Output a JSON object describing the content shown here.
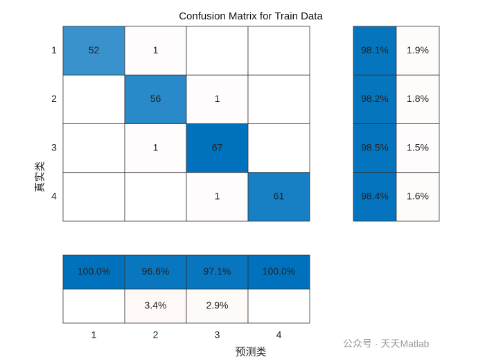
{
  "chart_data": {
    "type": "confusion",
    "title": "Confusion Matrix for Train Data",
    "xlabel": "预测类",
    "ylabel": "真实类",
    "classes": [
      "1",
      "2",
      "3",
      "4"
    ],
    "matrix": [
      [
        52,
        1,
        null,
        null
      ],
      [
        null,
        56,
        1,
        null
      ],
      [
        null,
        1,
        67,
        null
      ],
      [
        null,
        null,
        1,
        61
      ]
    ],
    "row_summary": {
      "correct": [
        98.1,
        98.2,
        98.5,
        98.4
      ],
      "correct_labels": [
        "98.1%",
        "98.2%",
        "98.5%",
        "98.4%"
      ],
      "incorrect": [
        1.9,
        1.8,
        1.5,
        1.6
      ],
      "incorrect_labels": [
        "1.9%",
        "1.8%",
        "1.5%",
        "1.6%"
      ]
    },
    "column_summary": {
      "correct": [
        100.0,
        96.6,
        97.1,
        100.0
      ],
      "correct_labels": [
        "100.0%",
        "96.6%",
        "97.1%",
        "100.0%"
      ],
      "incorrect": [
        null,
        3.4,
        2.9,
        null
      ],
      "incorrect_labels": [
        null,
        "3.4%",
        "2.9%",
        null
      ]
    },
    "diagonal_color": "#0072BD",
    "off_diagonal_color": "#D95319",
    "watermark": "公众号 · 天天Matlab"
  }
}
